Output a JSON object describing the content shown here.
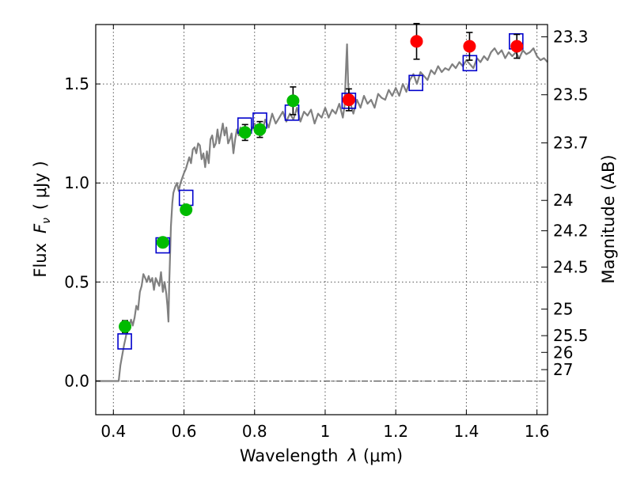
{
  "chart_data": {
    "type": "scatter",
    "xlabel_prefix": "Wavelength",
    "xlabel_var": "λ",
    "xlabel_unit": "(μm)",
    "ylabel_prefix": "Flux",
    "ylabel_var": "F",
    "ylabel_sub": "ν",
    "ylabel_unit": "( μJy )",
    "y2label": "Magnitude (AB)",
    "xlim": [
      0.35,
      1.63
    ],
    "ylim": [
      -0.17,
      1.8
    ],
    "grid": true,
    "x_ticks": [
      {
        "value": 0.4,
        "label": "0.4"
      },
      {
        "value": 0.6,
        "label": "0.6"
      },
      {
        "value": 0.8,
        "label": "0.8"
      },
      {
        "value": 1.0,
        "label": "1"
      },
      {
        "value": 1.2,
        "label": "1.2"
      },
      {
        "value": 1.4,
        "label": "1.4"
      },
      {
        "value": 1.6,
        "label": "1.6"
      }
    ],
    "y_ticks": [
      {
        "value": 0.0,
        "label": "0.0"
      },
      {
        "value": 0.5,
        "label": "0.5"
      },
      {
        "value": 1.0,
        "label": "1.0"
      },
      {
        "value": 1.5,
        "label": "1.5"
      }
    ],
    "magnitude_ticks": [
      {
        "value": 23.3,
        "label": "23.3"
      },
      {
        "value": 23.5,
        "label": "23.5"
      },
      {
        "value": 23.7,
        "label": "23.7"
      },
      {
        "value": 24,
        "label": "24"
      },
      {
        "value": 24.2,
        "label": "24.2"
      },
      {
        "value": 24.5,
        "label": "24.5"
      },
      {
        "value": 25,
        "label": "25"
      },
      {
        "value": 25.5,
        "label": "25.5"
      },
      {
        "value": 26,
        "label": "26"
      },
      {
        "value": 27,
        "label": "27"
      }
    ],
    "series": [
      {
        "name": "template-spectrum",
        "kind": "line",
        "color": "#808080",
        "x": [
          0.35,
          0.4,
          0.408,
          0.415,
          0.42,
          0.43,
          0.435,
          0.44,
          0.445,
          0.45,
          0.455,
          0.46,
          0.465,
          0.47,
          0.475,
          0.48,
          0.485,
          0.49,
          0.495,
          0.5,
          0.505,
          0.51,
          0.515,
          0.52,
          0.525,
          0.53,
          0.535,
          0.54,
          0.545,
          0.55,
          0.553,
          0.556,
          0.558,
          0.56,
          0.563,
          0.567,
          0.57,
          0.575,
          0.58,
          0.585,
          0.59,
          0.6,
          0.605,
          0.61,
          0.615,
          0.62,
          0.625,
          0.63,
          0.635,
          0.64,
          0.645,
          0.65,
          0.655,
          0.66,
          0.665,
          0.67,
          0.675,
          0.68,
          0.685,
          0.69,
          0.695,
          0.7,
          0.705,
          0.71,
          0.715,
          0.72,
          0.725,
          0.73,
          0.735,
          0.74,
          0.745,
          0.75,
          0.755,
          0.76,
          0.77,
          0.78,
          0.79,
          0.8,
          0.81,
          0.82,
          0.83,
          0.84,
          0.85,
          0.86,
          0.87,
          0.88,
          0.89,
          0.9,
          0.91,
          0.92,
          0.93,
          0.94,
          0.95,
          0.96,
          0.97,
          0.98,
          0.99,
          1.0,
          1.01,
          1.02,
          1.03,
          1.04,
          1.05,
          1.055,
          1.06,
          1.062,
          1.065,
          1.07,
          1.075,
          1.08,
          1.09,
          1.1,
          1.11,
          1.12,
          1.13,
          1.14,
          1.15,
          1.16,
          1.17,
          1.18,
          1.19,
          1.2,
          1.21,
          1.22,
          1.23,
          1.24,
          1.25,
          1.26,
          1.27,
          1.28,
          1.29,
          1.3,
          1.31,
          1.32,
          1.33,
          1.34,
          1.35,
          1.36,
          1.37,
          1.38,
          1.39,
          1.4,
          1.41,
          1.42,
          1.43,
          1.44,
          1.45,
          1.46,
          1.47,
          1.48,
          1.49,
          1.5,
          1.51,
          1.52,
          1.53,
          1.54,
          1.55,
          1.56,
          1.57,
          1.58,
          1.59,
          1.6,
          1.61,
          1.62,
          1.63
        ],
        "y": [
          0.0,
          0.0,
          0.0,
          0.0,
          0.08,
          0.18,
          0.22,
          0.27,
          0.28,
          0.31,
          0.28,
          0.32,
          0.38,
          0.36,
          0.45,
          0.48,
          0.54,
          0.52,
          0.5,
          0.53,
          0.5,
          0.52,
          0.46,
          0.52,
          0.5,
          0.48,
          0.55,
          0.45,
          0.5,
          0.44,
          0.38,
          0.3,
          0.48,
          0.6,
          0.78,
          0.9,
          0.95,
          0.98,
          1.0,
          0.96,
          1.0,
          1.05,
          1.07,
          1.1,
          1.13,
          1.1,
          1.17,
          1.18,
          1.15,
          1.2,
          1.19,
          1.12,
          1.15,
          1.08,
          1.16,
          1.1,
          1.22,
          1.24,
          1.18,
          1.2,
          1.27,
          1.2,
          1.25,
          1.3,
          1.24,
          1.28,
          1.2,
          1.22,
          1.25,
          1.15,
          1.22,
          1.27,
          1.24,
          1.28,
          1.25,
          1.28,
          1.26,
          1.3,
          1.27,
          1.24,
          1.32,
          1.28,
          1.35,
          1.3,
          1.33,
          1.36,
          1.31,
          1.35,
          1.32,
          1.38,
          1.31,
          1.36,
          1.34,
          1.37,
          1.3,
          1.35,
          1.33,
          1.38,
          1.33,
          1.37,
          1.35,
          1.4,
          1.33,
          1.39,
          1.62,
          1.7,
          1.5,
          1.42,
          1.38,
          1.35,
          1.42,
          1.38,
          1.44,
          1.4,
          1.42,
          1.38,
          1.45,
          1.43,
          1.42,
          1.47,
          1.44,
          1.48,
          1.44,
          1.5,
          1.46,
          1.52,
          1.55,
          1.5,
          1.56,
          1.54,
          1.52,
          1.57,
          1.55,
          1.59,
          1.56,
          1.58,
          1.57,
          1.6,
          1.58,
          1.61,
          1.59,
          1.62,
          1.6,
          1.58,
          1.63,
          1.61,
          1.64,
          1.62,
          1.66,
          1.68,
          1.65,
          1.67,
          1.63,
          1.66,
          1.64,
          1.66,
          1.63,
          1.67,
          1.65,
          1.66,
          1.68,
          1.64,
          1.62,
          1.63,
          1.61
        ]
      },
      {
        "name": "model-fluxes",
        "kind": "open-square",
        "color": "#0000cc",
        "x": [
          0.432,
          0.54,
          0.606,
          0.772,
          0.815,
          0.906,
          1.067,
          1.257,
          1.41,
          1.541
        ],
        "y": [
          0.2,
          0.685,
          0.925,
          1.29,
          1.315,
          1.355,
          1.415,
          1.505,
          1.605,
          1.715
        ]
      },
      {
        "name": "optical-measurements",
        "kind": "filled-circle",
        "color": "#00bb00",
        "x": [
          0.433,
          0.54,
          0.606,
          0.773,
          0.815,
          0.909
        ],
        "y": [
          0.275,
          0.7,
          0.865,
          1.255,
          1.27,
          1.415
        ],
        "yerr": [
          0.03,
          0.025,
          0.02,
          0.04,
          0.04,
          0.07
        ]
      },
      {
        "name": "nir-measurements",
        "kind": "filled-circle",
        "color": "#ff0000",
        "x": [
          1.067,
          1.259,
          1.409,
          1.543
        ],
        "y": [
          1.42,
          1.715,
          1.69,
          1.69
        ],
        "yerr": [
          0.055,
          0.09,
          0.07,
          0.06
        ]
      }
    ]
  }
}
